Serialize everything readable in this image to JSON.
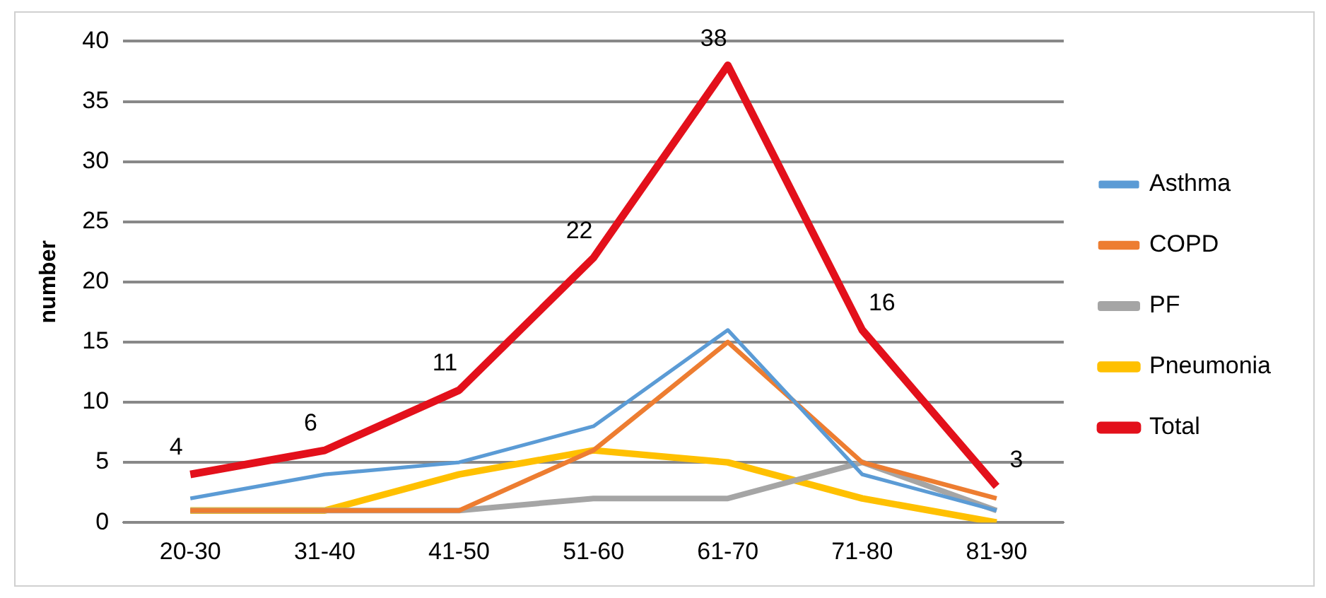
{
  "chart_data": {
    "type": "line",
    "ylabel": "number",
    "categories": [
      "20-30",
      "31-40",
      "41-50",
      "51-60",
      "61-70",
      "71-80",
      "81-90"
    ],
    "ylim": [
      0,
      40
    ],
    "yticks": [
      0,
      5,
      10,
      15,
      20,
      25,
      30,
      35,
      40
    ],
    "grid": "y",
    "legend": "right",
    "marker": "none",
    "series": [
      {
        "name": "Asthma",
        "color": "#5b9bd5",
        "values": [
          2,
          4,
          5,
          8,
          16,
          4,
          1
        ]
      },
      {
        "name": "COPD",
        "color": "#ed7d31",
        "values": [
          1,
          1,
          1,
          6,
          15,
          5,
          2
        ]
      },
      {
        "name": "PF",
        "color": "#a5a5a5",
        "values": [
          1,
          1,
          1,
          2,
          2,
          5,
          1
        ]
      },
      {
        "name": "Pneumonia",
        "color": "#ffc000",
        "values": [
          1,
          1,
          4,
          6,
          5,
          2,
          0
        ]
      },
      {
        "name": "Total",
        "color": "#e3101b",
        "values": [
          4,
          6,
          11,
          22,
          38,
          16,
          3
        ],
        "value_labels": [
          "4",
          "6",
          "11",
          "22",
          "38",
          "16",
          "3"
        ]
      }
    ]
  }
}
